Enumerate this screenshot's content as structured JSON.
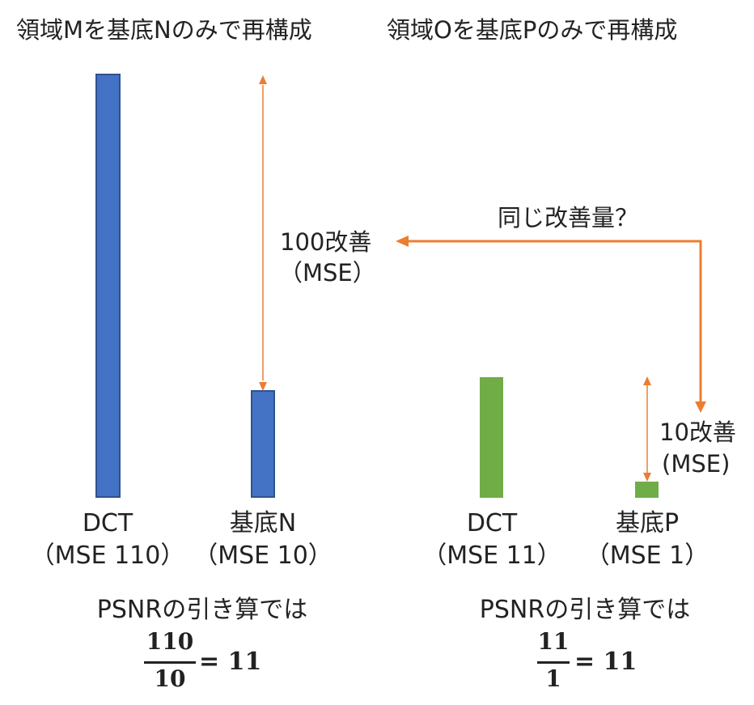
{
  "left_panel": {
    "title": "領域Mを基底Nのみで再構成",
    "bar1_label_line1": "DCT",
    "bar1_label_line2": "（MSE 110）",
    "bar2_label_line1": "基底N",
    "bar2_label_line2": "（MSE 10）",
    "improvement_line1": "100改善",
    "improvement_line2": "（MSE）",
    "psnr_caption": "PSNRの引き算では",
    "fraction_numerator": "110",
    "fraction_denominator": "10",
    "fraction_result": "= 11",
    "bar_color": "#4472C4"
  },
  "right_panel": {
    "title": "領域Oを基底Pのみで再構成",
    "bar1_label_line1": "DCT",
    "bar1_label_line2": "（MSE 11）",
    "bar2_label_line1": "基底P",
    "bar2_label_line2": "（MSE 1）",
    "improvement_line1": "10改善",
    "improvement_line2": "(MSE)",
    "psnr_caption": "PSNRの引き算では",
    "fraction_numerator": "11",
    "fraction_denominator": "1",
    "fraction_result": "= 11",
    "bar_color": "#70AD47"
  },
  "question_label": "同じ改善量？",
  "arrow_color": "#ED7D31"
}
